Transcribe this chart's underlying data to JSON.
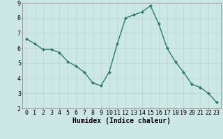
{
  "xlabel": "Humidex (Indice chaleur)",
  "ylabel": "",
  "x": [
    0,
    1,
    2,
    3,
    4,
    5,
    6,
    7,
    8,
    9,
    10,
    11,
    12,
    13,
    14,
    15,
    16,
    17,
    18,
    19,
    20,
    21,
    22,
    23
  ],
  "y": [
    6.6,
    6.3,
    5.9,
    5.9,
    5.7,
    5.1,
    4.8,
    4.4,
    3.7,
    3.5,
    4.4,
    6.3,
    8.0,
    8.2,
    8.4,
    8.8,
    7.6,
    6.0,
    5.1,
    4.4,
    3.6,
    3.4,
    3.0,
    2.4
  ],
  "xlim": [
    -0.5,
    23.5
  ],
  "ylim": [
    2,
    9
  ],
  "xticks": [
    0,
    1,
    2,
    3,
    4,
    5,
    6,
    7,
    8,
    9,
    10,
    11,
    12,
    13,
    14,
    15,
    16,
    17,
    18,
    19,
    20,
    21,
    22,
    23
  ],
  "yticks": [
    2,
    3,
    4,
    5,
    6,
    7,
    8,
    9
  ],
  "line_color": "#2d7a6e",
  "marker": "D",
  "marker_size": 2.0,
  "bg_color": "#cce8e4",
  "grid_color": "#b8d8d4",
  "xlabel_fontsize": 7,
  "tick_fontsize": 6,
  "linewidth": 1.0
}
